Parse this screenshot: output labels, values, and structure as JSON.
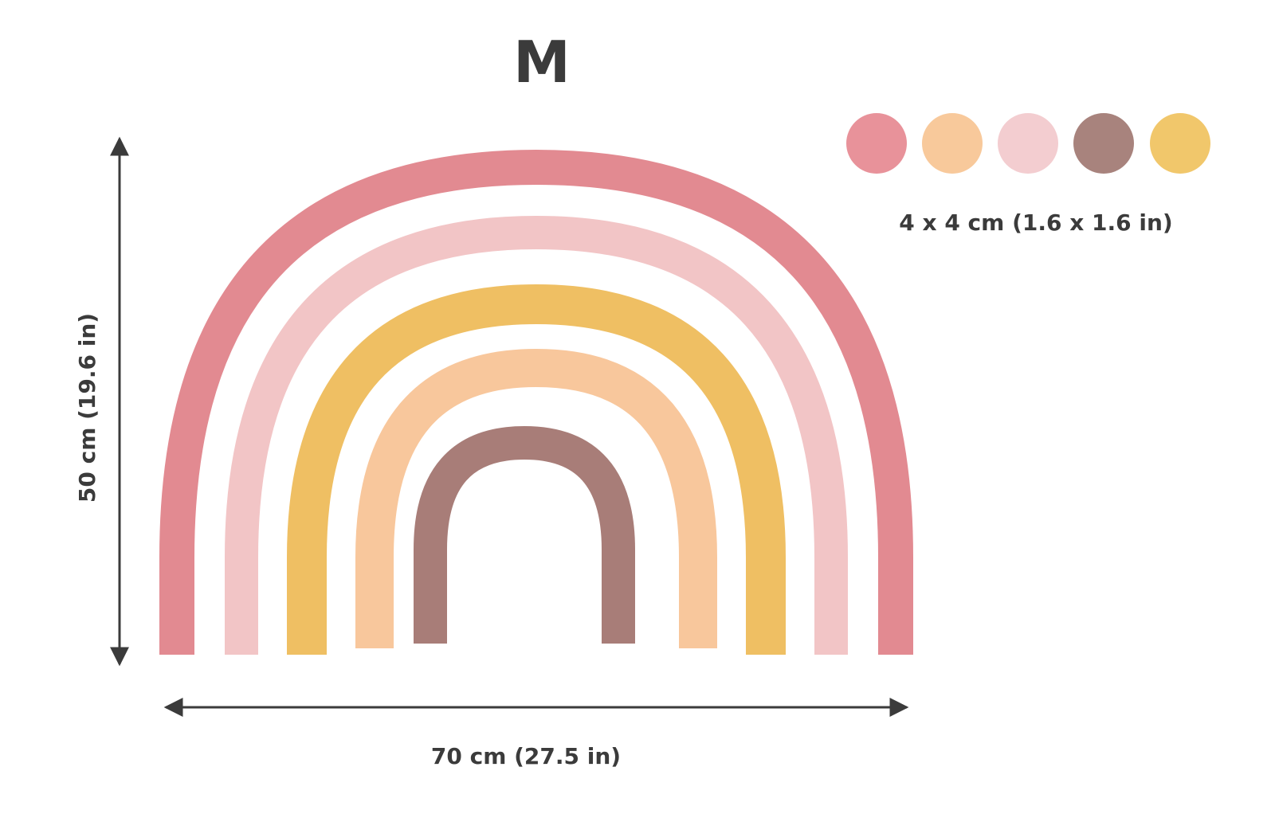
{
  "size_label": "M",
  "width_label": "70 cm (27.5 in)",
  "height_label": "50 cm (19.6 in)",
  "dot_size_label": "4 x 4 cm (1.6 x 1.6 in)",
  "arcs": [
    {
      "name": "arc-1-coral",
      "color": "#e28a91"
    },
    {
      "name": "arc-2-pink",
      "color": "#f2c5c6"
    },
    {
      "name": "arc-3-mustard",
      "color": "#efbf63"
    },
    {
      "name": "arc-4-peach",
      "color": "#f8c79c"
    },
    {
      "name": "arc-5-mauve",
      "color": "#a87d78"
    }
  ],
  "dots": [
    {
      "name": "dot-coral",
      "color": "#e8929a"
    },
    {
      "name": "dot-peach",
      "color": "#f8c99b"
    },
    {
      "name": "dot-pink",
      "color": "#f3cdd0"
    },
    {
      "name": "dot-mauve",
      "color": "#a8837d"
    },
    {
      "name": "dot-mustard",
      "color": "#f1c76b"
    }
  ],
  "dimension_line_color": "#3b3b3b"
}
